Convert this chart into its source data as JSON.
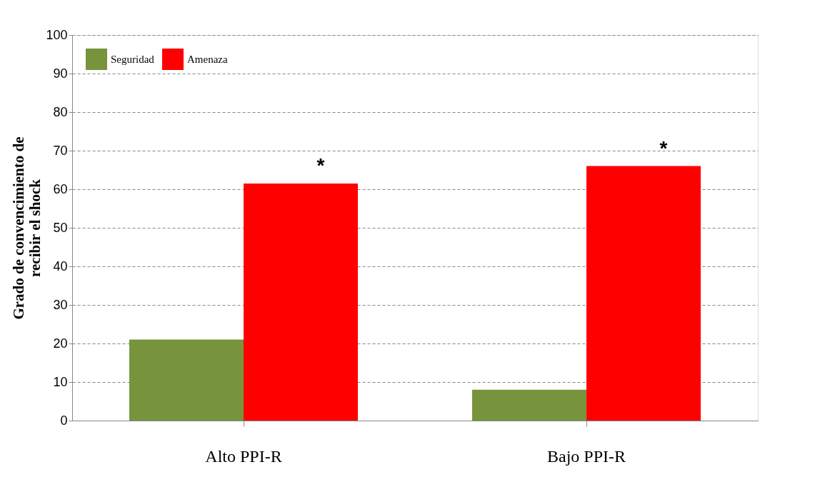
{
  "chart_data": {
    "type": "bar",
    "categories": [
      "Alto PPI-R",
      "Bajo PPI-R"
    ],
    "series": [
      {
        "name": "Seguridad",
        "color": "#77933c",
        "values": [
          21,
          8
        ]
      },
      {
        "name": "Amenaza",
        "color": "#ff0000",
        "values": [
          61.5,
          66
        ]
      }
    ],
    "ylabel": "Grado de convencimiento de recibir el shock",
    "ylim": [
      0,
      100
    ],
    "yticks": [
      0,
      10,
      20,
      30,
      40,
      50,
      60,
      70,
      80,
      90,
      100
    ],
    "grid": "y",
    "legend": "top left",
    "annotations": [
      "*",
      "*"
    ]
  }
}
